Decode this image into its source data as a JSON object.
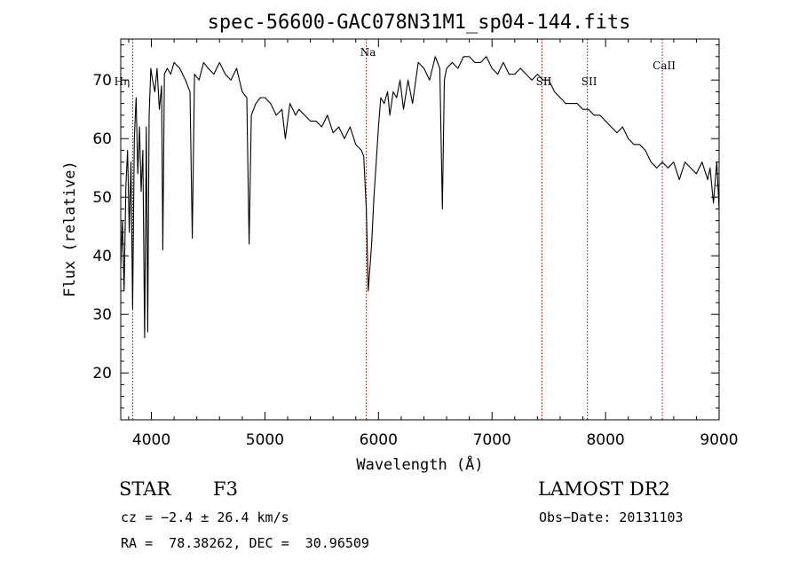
{
  "chart_data": {
    "type": "line",
    "title": "spec-56600-GAC078N31M1_sp04-144.fits",
    "xlabel": "Wavelength (Å)",
    "ylabel": "Flux (relative)",
    "xlim": [
      3730,
      9000
    ],
    "ylim": [
      12,
      77
    ],
    "xticks": [
      4000,
      5000,
      6000,
      7000,
      8000,
      9000
    ],
    "yticks": [
      20,
      30,
      40,
      50,
      60,
      70
    ],
    "grid": false,
    "series": [
      {
        "x": [
          3730,
          3745,
          3760,
          3775,
          3790,
          3805,
          3820,
          3835,
          3850,
          3865,
          3880,
          3895,
          3910,
          3925,
          3940,
          3955,
          3968,
          3980,
          3995,
          4010,
          4030,
          4050,
          4070,
          4090,
          4101,
          4115,
          4140,
          4170,
          4200,
          4250,
          4300,
          4340,
          4360,
          4380,
          4420,
          4460,
          4500,
          4550,
          4600,
          4650,
          4700,
          4750,
          4800,
          4840,
          4861,
          4880,
          4920,
          4960,
          5000,
          5050,
          5100,
          5150,
          5180,
          5220,
          5270,
          5300,
          5350,
          5400,
          5450,
          5500,
          5550,
          5600,
          5650,
          5700,
          5750,
          5800,
          5850,
          5870,
          5893,
          5910,
          5925,
          5940,
          5960,
          5980,
          6000,
          6020,
          6050,
          6080,
          6100,
          6130,
          6160,
          6190,
          6220,
          6260,
          6300,
          6350,
          6400,
          6450,
          6500,
          6540,
          6563,
          6580,
          6600,
          6650,
          6700,
          6750,
          6800,
          6850,
          6900,
          6950,
          7000,
          7050,
          7100,
          7150,
          7200,
          7250,
          7300,
          7350,
          7400,
          7450,
          7500,
          7550,
          7600,
          7650,
          7700,
          7750,
          7800,
          7850,
          7900,
          7950,
          8000,
          8050,
          8100,
          8150,
          8200,
          8250,
          8300,
          8350,
          8400,
          8450,
          8500,
          8550,
          8600,
          8650,
          8700,
          8750,
          8800,
          8850,
          8900,
          8920,
          8950,
          8980,
          9000
        ],
        "y": [
          38,
          46,
          34,
          52,
          58,
          44,
          56,
          31,
          60,
          67,
          54,
          62,
          51,
          58,
          26,
          62,
          27,
          64,
          72,
          70,
          68,
          72,
          65,
          69,
          41,
          71,
          72,
          71,
          73,
          72,
          70,
          68,
          43,
          71,
          70,
          73,
          72,
          71,
          73,
          71,
          70,
          72,
          68,
          67,
          42,
          64,
          66,
          67,
          67,
          66,
          64,
          65,
          60,
          66,
          64,
          65,
          64,
          63,
          63,
          62,
          64,
          61,
          62,
          60,
          62,
          59,
          58,
          57,
          48,
          34,
          38,
          42,
          50,
          56,
          62,
          67,
          66,
          68,
          64,
          68,
          67,
          70,
          65,
          70,
          66,
          73,
          72,
          70,
          74,
          72,
          48,
          70,
          72,
          73,
          72,
          74,
          74,
          73,
          73,
          74,
          72,
          71,
          73,
          71,
          71,
          72,
          71,
          70,
          71,
          70,
          70,
          68,
          67,
          66,
          66,
          66,
          65,
          65,
          64,
          64,
          63,
          62,
          61,
          62,
          60,
          59,
          59,
          58,
          56,
          55,
          56,
          55,
          56,
          53,
          56,
          55,
          54,
          56,
          53,
          55,
          49,
          56,
          48
        ]
      }
    ],
    "annotations": [
      {
        "x": 3835,
        "text": "Hη",
        "line": "dashed"
      },
      {
        "x": 5893,
        "text": "Na",
        "line": "dashed"
      },
      {
        "x": 7440,
        "text": "SII",
        "line": "dashed"
      },
      {
        "x": 7840,
        "text": "SII",
        "line": "dashed"
      },
      {
        "x": 8500,
        "text": "CaII",
        "line": "dashed"
      }
    ],
    "colors": {
      "spectrum": "#000000",
      "line_marker": "#990000",
      "axes": "#000000"
    }
  },
  "info": {
    "object_class": "STAR",
    "subclass": "F3",
    "survey": "LAMOST DR2",
    "cz": "cz = −2.4 ± 26.4 km/s",
    "obs_date": "Obs−Date: 20131103",
    "coords": "RA =  78.38262, DEC =  30.96509"
  }
}
